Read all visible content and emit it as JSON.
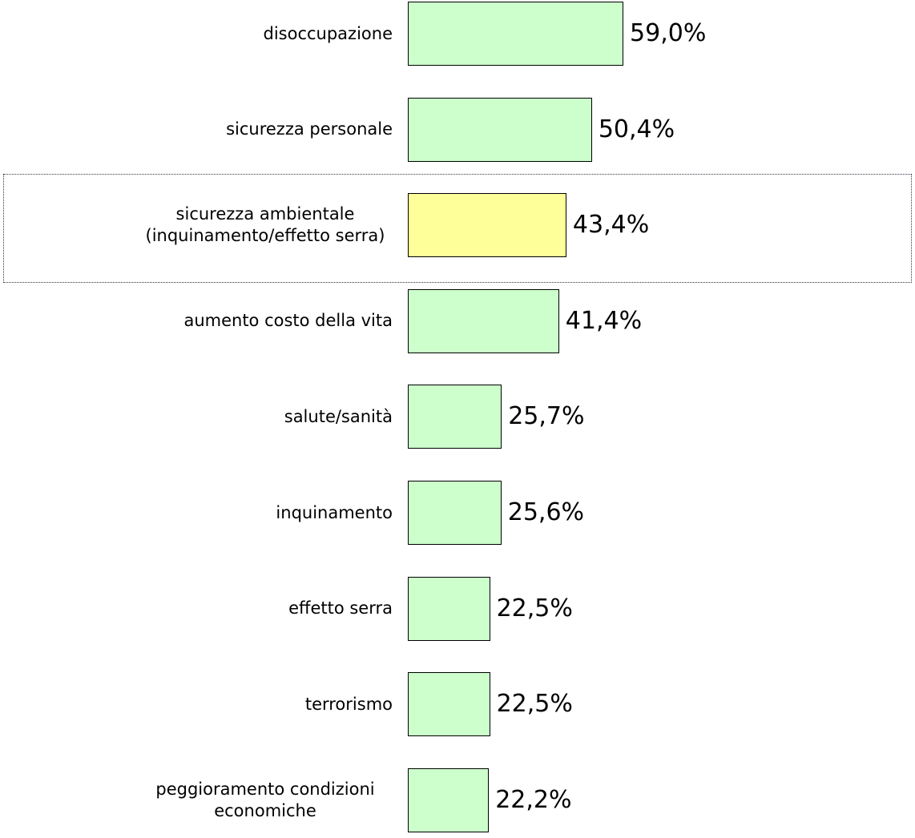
{
  "chart_data": {
    "type": "hbar",
    "categories": [
      "disoccupazione",
      "sicurezza personale",
      "sicurezza ambientale (inquinamento/effetto serra)",
      "aumento costo della vita",
      "salute/sanità",
      "inquinamento",
      "effetto serra",
      "terrorismo",
      "peggioramento condizioni economiche"
    ],
    "values": [
      59.0,
      50.4,
      43.4,
      41.4,
      25.7,
      25.6,
      22.5,
      22.5,
      22.2
    ],
    "value_labels": [
      "59,0%",
      "50,4%",
      "43,4%",
      "41,4%",
      "25,7%",
      "25,6%",
      "22,5%",
      "22,5%",
      "22,2%"
    ],
    "colors": [
      "#ccffcc",
      "#ccffcc",
      "#ffff99",
      "#ccffcc",
      "#ccffcc",
      "#ccffcc",
      "#ccffcc",
      "#ccffcc",
      "#ccffcc"
    ]
  }
}
